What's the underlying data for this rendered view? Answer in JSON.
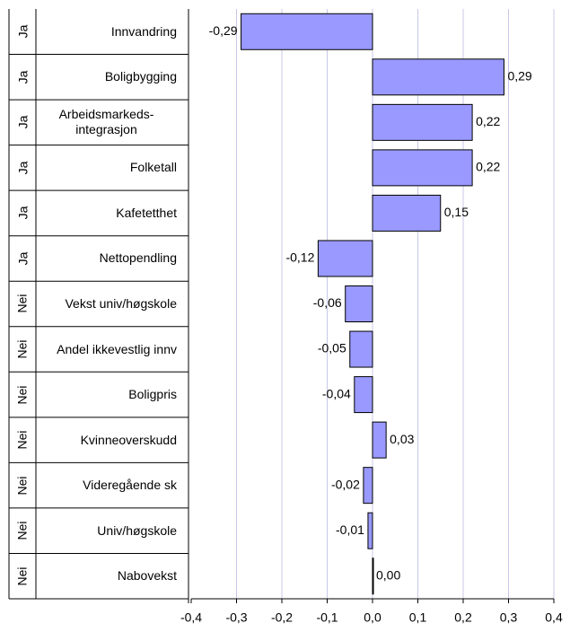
{
  "chart_data": {
    "type": "bar",
    "orientation": "horizontal",
    "groups": [
      "Ja",
      "Ja",
      "Ja",
      "Ja",
      "Ja",
      "Ja",
      "Nei",
      "Nei",
      "Nei",
      "Nei",
      "Nei",
      "Nei",
      "Nei"
    ],
    "categories": [
      "Innvandring",
      "Boligbygging",
      "Arbeidsmarkeds-integrasjon",
      "Folketall",
      "Kafetetthet",
      "Nettopendling",
      "Vekst univ/høgskole",
      "Andel ikkevestlig innv",
      "Boligpris",
      "Kvinneoverskudd",
      "Videregående sk",
      "Univ/høgskole",
      "Nabovekst"
    ],
    "values": [
      -0.29,
      0.29,
      0.22,
      0.22,
      0.15,
      -0.12,
      -0.06,
      -0.05,
      -0.04,
      0.03,
      -0.02,
      -0.01,
      0.0
    ],
    "value_labels": [
      "-0,29",
      "0,29",
      "0,22",
      "0,22",
      "0,15",
      "-0,12",
      "-0,06",
      "-0,05",
      "-0,04",
      "0,03",
      "-0,02",
      "-0,01",
      "0,00"
    ],
    "color": "#9999ff",
    "xlim": [
      -0.4,
      0.4
    ],
    "xticks": [
      {
        "value": -0.4,
        "label": "-0,4"
      },
      {
        "value": -0.3,
        "label": "-0,3"
      },
      {
        "value": -0.2,
        "label": "-0,2"
      },
      {
        "value": -0.1,
        "label": "-0,1"
      },
      {
        "value": 0.0,
        "label": "0,0"
      },
      {
        "value": 0.1,
        "label": "0,1"
      },
      {
        "value": 0.2,
        "label": "0,2"
      },
      {
        "value": 0.3,
        "label": "0,3"
      },
      {
        "value": 0.4,
        "label": "0,4"
      }
    ],
    "grid": true
  }
}
